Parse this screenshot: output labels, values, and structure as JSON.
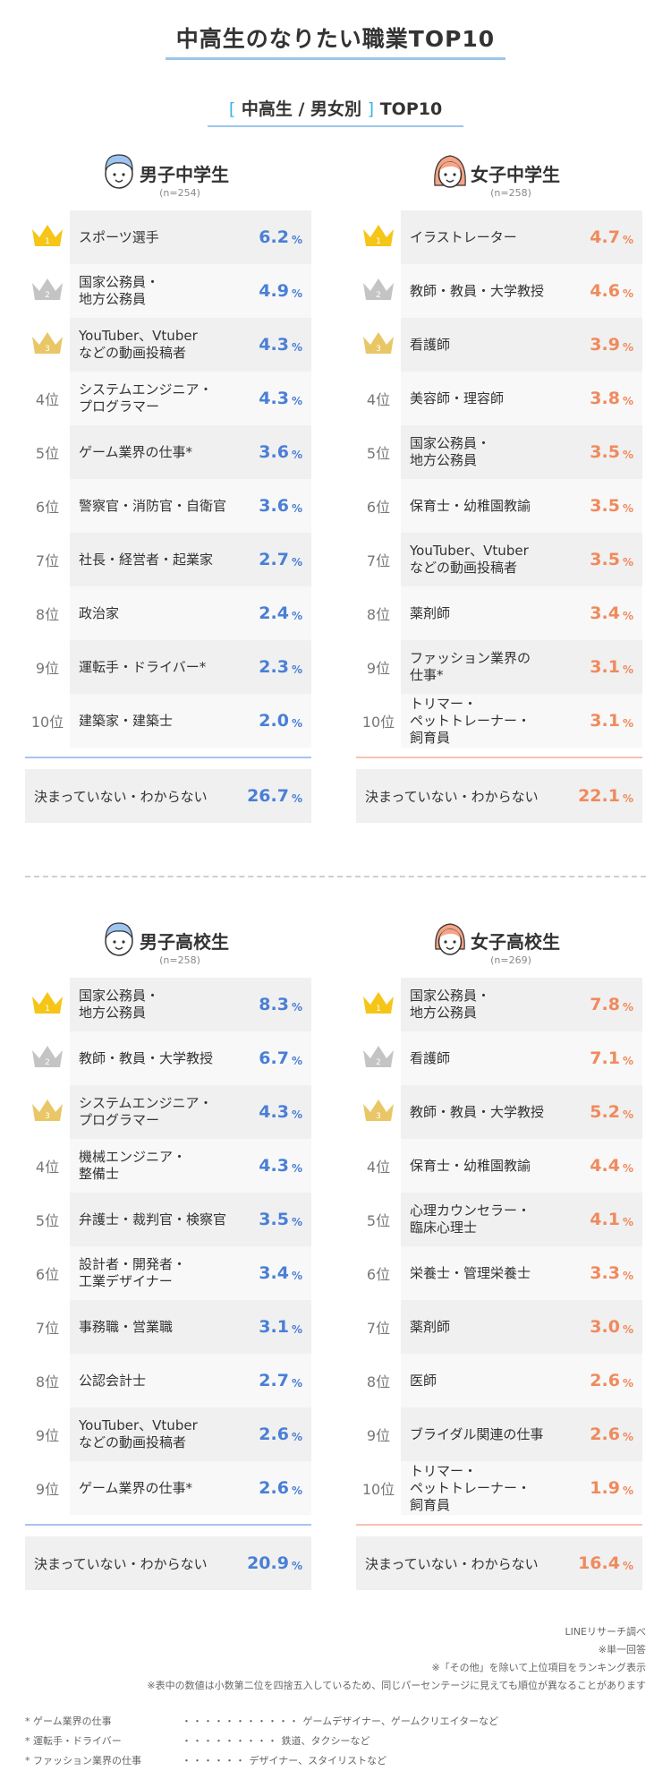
{
  "title": "中高生のなりたい職業TOP10",
  "subtitle": {
    "open": "[",
    "text": "中高生 / 男女別",
    "close": "]",
    "suffix": "TOP10"
  },
  "pct": "%",
  "colors": {
    "male": "#4a7fd6",
    "female": "#f08a5d"
  },
  "chart_data": [
    {
      "type": "table",
      "title": "男子中学生",
      "n": "(n=254)",
      "rows": [
        {
          "rank": "1",
          "job": "スポーツ選手",
          "value": 6.2
        },
        {
          "rank": "2",
          "job": "国家公務員・\n地方公務員",
          "value": 4.9
        },
        {
          "rank": "3",
          "job": "YouTuber、Vtuber\nなどの動画投稿者",
          "value": 4.3
        },
        {
          "rank": "4位",
          "job": "システムエンジニア・\nプログラマー",
          "value": 4.3
        },
        {
          "rank": "5位",
          "job": "ゲーム業界の仕事*",
          "value": 3.6
        },
        {
          "rank": "6位",
          "job": "警察官・消防官・自衛官",
          "value": 3.6
        },
        {
          "rank": "7位",
          "job": "社長・経営者・起業家",
          "value": 2.7
        },
        {
          "rank": "8位",
          "job": "政治家",
          "value": 2.4
        },
        {
          "rank": "9位",
          "job": "運転手・ドライバー*",
          "value": 2.3
        },
        {
          "rank": "10位",
          "job": "建築家・建築士",
          "value": 2.0
        }
      ],
      "undecided": {
        "label": "決まっていない・わからない",
        "value": 26.7
      }
    },
    {
      "type": "table",
      "title": "女子中学生",
      "n": "(n=258)",
      "rows": [
        {
          "rank": "1",
          "job": "イラストレーター",
          "value": 4.7
        },
        {
          "rank": "2",
          "job": "教師・教員・大学教授",
          "value": 4.6
        },
        {
          "rank": "3",
          "job": "看護師",
          "value": 3.9
        },
        {
          "rank": "4位",
          "job": "美容師・理容師",
          "value": 3.8
        },
        {
          "rank": "5位",
          "job": "国家公務員・\n地方公務員",
          "value": 3.5
        },
        {
          "rank": "6位",
          "job": "保育士・幼稚園教諭",
          "value": 3.5
        },
        {
          "rank": "7位",
          "job": "YouTuber、Vtuber\nなどの動画投稿者",
          "value": 3.5
        },
        {
          "rank": "8位",
          "job": "薬剤師",
          "value": 3.4
        },
        {
          "rank": "9位",
          "job": "ファッション業界の\n仕事*",
          "value": 3.1
        },
        {
          "rank": "10位",
          "job": "トリマー・\nペットトレーナー・\n飼育員",
          "value": 3.1
        }
      ],
      "undecided": {
        "label": "決まっていない・わからない",
        "value": 22.1
      }
    },
    {
      "type": "table",
      "title": "男子高校生",
      "n": "(n=258)",
      "rows": [
        {
          "rank": "1",
          "job": "国家公務員・\n地方公務員",
          "value": 8.3
        },
        {
          "rank": "2",
          "job": "教師・教員・大学教授",
          "value": 6.7
        },
        {
          "rank": "3",
          "job": "システムエンジニア・\nプログラマー",
          "value": 4.3
        },
        {
          "rank": "4位",
          "job": "機械エンジニア・\n整備士",
          "value": 4.3
        },
        {
          "rank": "5位",
          "job": "弁護士・裁判官・検察官",
          "value": 3.5
        },
        {
          "rank": "6位",
          "job": "設計者・開発者・\n工業デザイナー",
          "value": 3.4
        },
        {
          "rank": "7位",
          "job": "事務職・営業職",
          "value": 3.1
        },
        {
          "rank": "8位",
          "job": "公認会計士",
          "value": 2.7
        },
        {
          "rank": "9位",
          "job": "YouTuber、Vtuber\nなどの動画投稿者",
          "value": 2.6
        },
        {
          "rank": "9位",
          "job": "ゲーム業界の仕事*",
          "value": 2.6
        }
      ],
      "undecided": {
        "label": "決まっていない・わからない",
        "value": 20.9
      }
    },
    {
      "type": "table",
      "title": "女子高校生",
      "n": "(n=269)",
      "rows": [
        {
          "rank": "1",
          "job": "国家公務員・\n地方公務員",
          "value": 7.8
        },
        {
          "rank": "2",
          "job": "看護師",
          "value": 7.1
        },
        {
          "rank": "3",
          "job": "教師・教員・大学教授",
          "value": 5.2
        },
        {
          "rank": "4位",
          "job": "保育士・幼稚園教諭",
          "value": 4.4
        },
        {
          "rank": "5位",
          "job": "心理カウンセラー・\n臨床心理士",
          "value": 4.1
        },
        {
          "rank": "6位",
          "job": "栄養士・管理栄養士",
          "value": 3.3
        },
        {
          "rank": "7位",
          "job": "薬剤師",
          "value": 3.0
        },
        {
          "rank": "8位",
          "job": "医師",
          "value": 2.6
        },
        {
          "rank": "9位",
          "job": "ブライダル関連の仕事",
          "value": 2.6
        },
        {
          "rank": "10位",
          "job": "トリマー・\nペットトレーナー・\n飼育員",
          "value": 1.9
        }
      ],
      "undecided": {
        "label": "決まっていない・わからない",
        "value": 16.4
      }
    }
  ],
  "notes": [
    "LINEリサーチ調べ",
    "※単一回答",
    "※「その他」を除いて上位項目をランキング表示",
    "※表中の数値は小数第二位を四捨五入しているため、同じパーセンテージに見えても順位が異なることがあります"
  ],
  "footnotes": [
    {
      "key": "* ゲーム業界の仕事",
      "dots": "・・・・・・・・・・・",
      "desc": "ゲームデザイナー、ゲームクリエイターなど"
    },
    {
      "key": "* 運転手・ドライバー",
      "dots": "・・・・・・・・・",
      "desc": "鉄道、タクシーなど"
    },
    {
      "key": "* ファッション業界の仕事",
      "dots": "・・・・・・",
      "desc": "デザイナー、スタイリストなど"
    }
  ]
}
